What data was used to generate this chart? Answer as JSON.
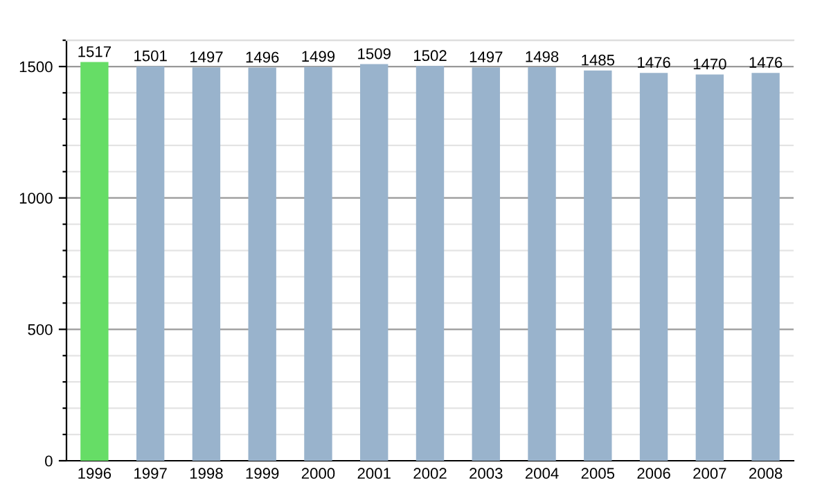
{
  "chart_data": {
    "type": "bar",
    "categories": [
      "1996",
      "1997",
      "1998",
      "1999",
      "2000",
      "2001",
      "2002",
      "2003",
      "2004",
      "2005",
      "2006",
      "2007",
      "2008"
    ],
    "values": [
      1517,
      1501,
      1497,
      1496,
      1499,
      1509,
      1502,
      1497,
      1498,
      1485,
      1476,
      1470,
      1476
    ],
    "colors": [
      "#66dd66",
      "#99b3cc",
      "#99b3cc",
      "#99b3cc",
      "#99b3cc",
      "#99b3cc",
      "#99b3cc",
      "#99b3cc",
      "#99b3cc",
      "#99b3cc",
      "#99b3cc",
      "#99b3cc",
      "#99b3cc"
    ],
    "data_labels": true,
    "ylim": [
      0,
      1600
    ],
    "yticks": [
      0,
      {
        "value": 100,
        "label": null
      },
      {
        "value": 200,
        "label": null
      },
      {
        "value": 300,
        "label": null
      },
      {
        "value": 400,
        "label": null
      },
      500,
      {
        "value": 600,
        "label": null
      },
      {
        "value": 700,
        "label": null
      },
      {
        "value": 800,
        "label": null
      },
      {
        "value": 900,
        "label": null
      },
      1000,
      {
        "value": 1100,
        "label": null
      },
      {
        "value": 1200,
        "label": null
      },
      {
        "value": 1300,
        "label": null
      },
      {
        "value": 1400,
        "label": null
      },
      1500,
      {
        "value": 1600,
        "label": null
      }
    ],
    "grid": "y",
    "legend": false
  }
}
